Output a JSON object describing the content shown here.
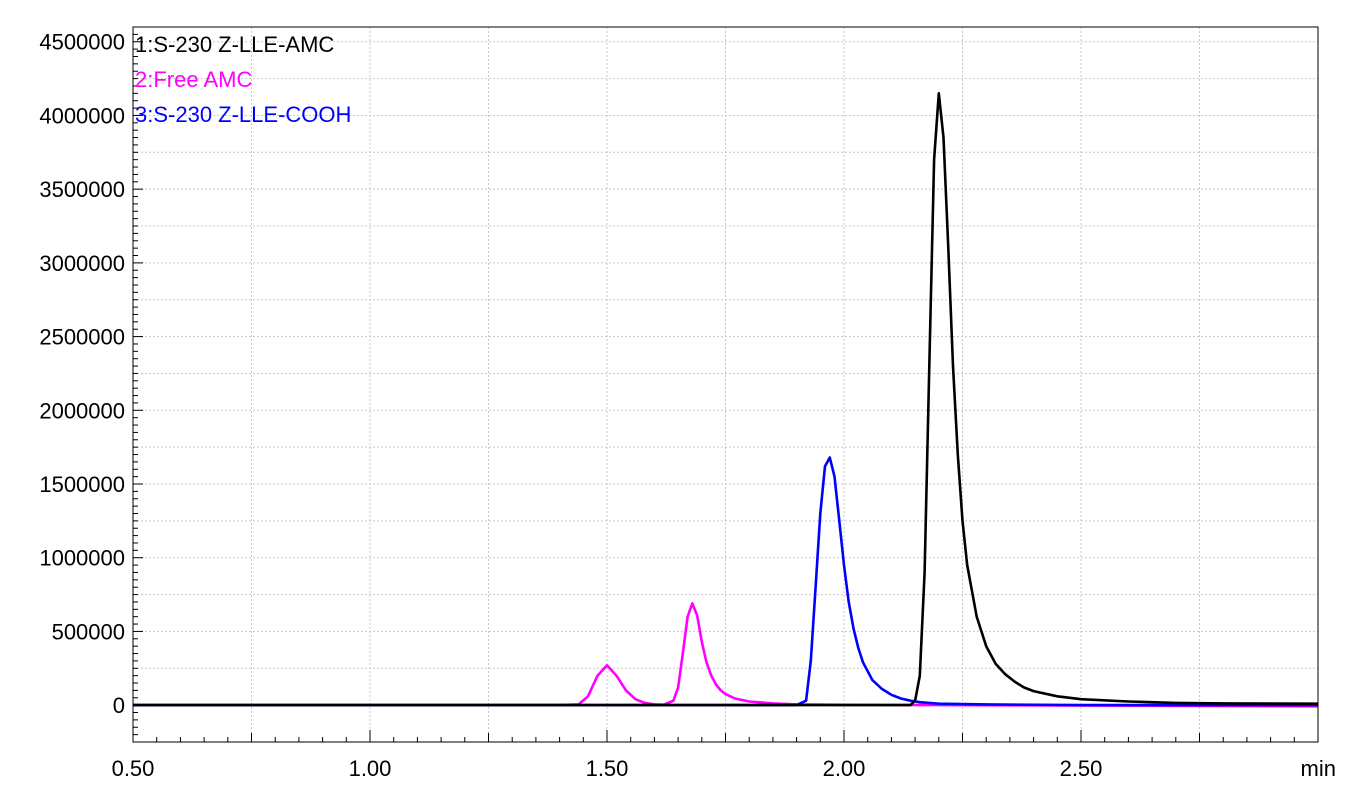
{
  "chart_data": {
    "type": "line",
    "title": "",
    "xlabel": "",
    "ylabel": "",
    "x_unit_label": "min",
    "xlim": [
      0.5,
      3.0
    ],
    "ylim": [
      -250000,
      4600000
    ],
    "grid": true,
    "legend_position": "top-left",
    "x_ticks": [
      {
        "value": 0.5,
        "label": "0.50"
      },
      {
        "value": 1.0,
        "label": "1.00"
      },
      {
        "value": 1.5,
        "label": "1.50"
      },
      {
        "value": 2.0,
        "label": "2.00"
      },
      {
        "value": 2.5,
        "label": "2.50"
      }
    ],
    "x_minor_step": 0.25,
    "y_ticks": [
      {
        "value": 0,
        "label": "0"
      },
      {
        "value": 500000,
        "label": "500000"
      },
      {
        "value": 1000000,
        "label": "1000000"
      },
      {
        "value": 1500000,
        "label": "1500000"
      },
      {
        "value": 2000000,
        "label": "2000000"
      },
      {
        "value": 2500000,
        "label": "2500000"
      },
      {
        "value": 3000000,
        "label": "3000000"
      },
      {
        "value": 3500000,
        "label": "3500000"
      },
      {
        "value": 4000000,
        "label": "4000000"
      },
      {
        "value": 4500000,
        "label": "4500000"
      }
    ],
    "series": [
      {
        "name": "1:S-230 Z-LLE-AMC",
        "color": "#000000",
        "x": [
          0.5,
          2.0,
          2.1,
          2.14,
          2.15,
          2.16,
          2.17,
          2.18,
          2.19,
          2.2,
          2.21,
          2.22,
          2.23,
          2.24,
          2.25,
          2.26,
          2.28,
          2.3,
          2.32,
          2.34,
          2.36,
          2.38,
          2.4,
          2.45,
          2.5,
          2.6,
          2.7,
          2.8,
          3.0
        ],
        "y": [
          0,
          0,
          0,
          0,
          30000,
          200000,
          900000,
          2300000,
          3700000,
          4150000,
          3850000,
          3100000,
          2300000,
          1700000,
          1250000,
          950000,
          600000,
          400000,
          280000,
          210000,
          160000,
          120000,
          95000,
          60000,
          40000,
          25000,
          15000,
          12000,
          10000
        ]
      },
      {
        "name": "2:Free AMC",
        "color": "#ff00ff",
        "x": [
          0.5,
          1.4,
          1.44,
          1.46,
          1.48,
          1.5,
          1.52,
          1.54,
          1.56,
          1.58,
          1.6,
          1.62,
          1.64,
          1.65,
          1.66,
          1.67,
          1.68,
          1.69,
          1.7,
          1.71,
          1.72,
          1.73,
          1.74,
          1.75,
          1.77,
          1.8,
          1.85,
          1.9,
          2.0,
          2.2,
          3.0
        ],
        "y": [
          0,
          0,
          5000,
          60000,
          200000,
          270000,
          200000,
          100000,
          40000,
          15000,
          5000,
          3000,
          30000,
          120000,
          350000,
          600000,
          690000,
          610000,
          430000,
          290000,
          200000,
          140000,
          100000,
          75000,
          45000,
          25000,
          12000,
          5000,
          2000,
          0,
          -8000
        ]
      },
      {
        "name": "3:S-230 Z-LLE-COOH",
        "color": "#0000ff",
        "x": [
          0.5,
          1.9,
          1.92,
          1.93,
          1.94,
          1.95,
          1.96,
          1.97,
          1.98,
          1.99,
          2.0,
          2.01,
          2.02,
          2.03,
          2.04,
          2.06,
          2.08,
          2.1,
          2.12,
          2.14,
          2.16,
          2.2,
          2.3,
          2.5,
          3.0
        ],
        "y": [
          0,
          0,
          30000,
          300000,
          800000,
          1300000,
          1620000,
          1680000,
          1550000,
          1250000,
          950000,
          700000,
          520000,
          390000,
          290000,
          170000,
          110000,
          70000,
          45000,
          30000,
          20000,
          10000,
          5000,
          0,
          0
        ]
      }
    ]
  }
}
